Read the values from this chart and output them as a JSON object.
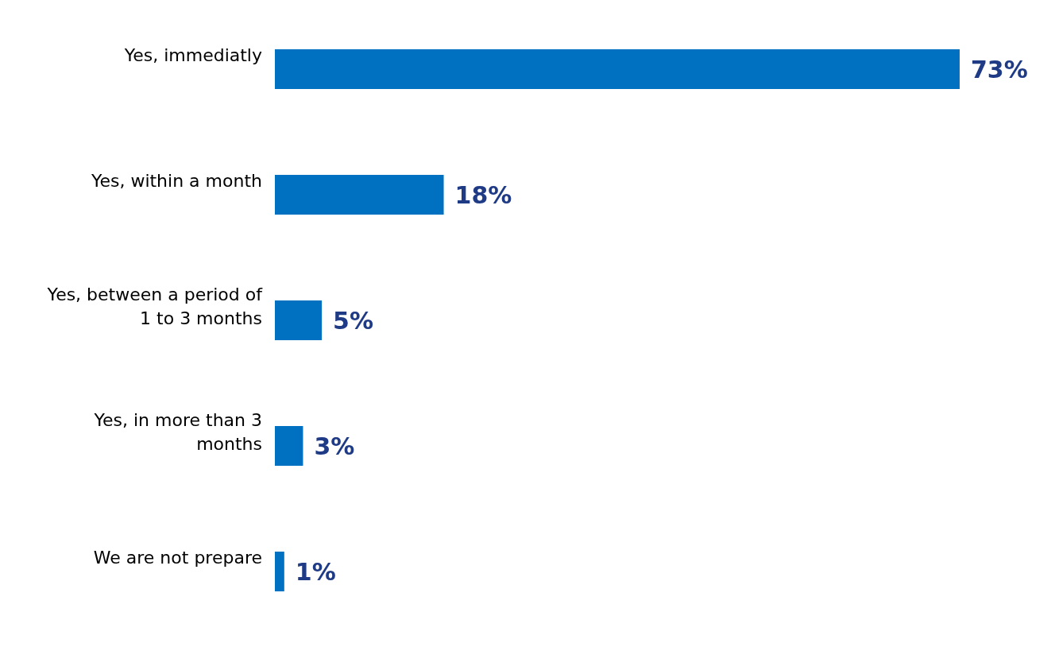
{
  "chart_data": {
    "type": "bar",
    "orientation": "horizontal",
    "categories": [
      "Yes, immediatly",
      "Yes, within a month",
      "Yes, between a period of 1 to 3 months",
      "Yes, in more than 3 months",
      "We are not prepare"
    ],
    "values": [
      73,
      18,
      5,
      3,
      1
    ],
    "value_labels": [
      "73%",
      "18%",
      "5%",
      "3%",
      "1%"
    ],
    "color": "#0070c0",
    "grid": false,
    "legend": false
  }
}
